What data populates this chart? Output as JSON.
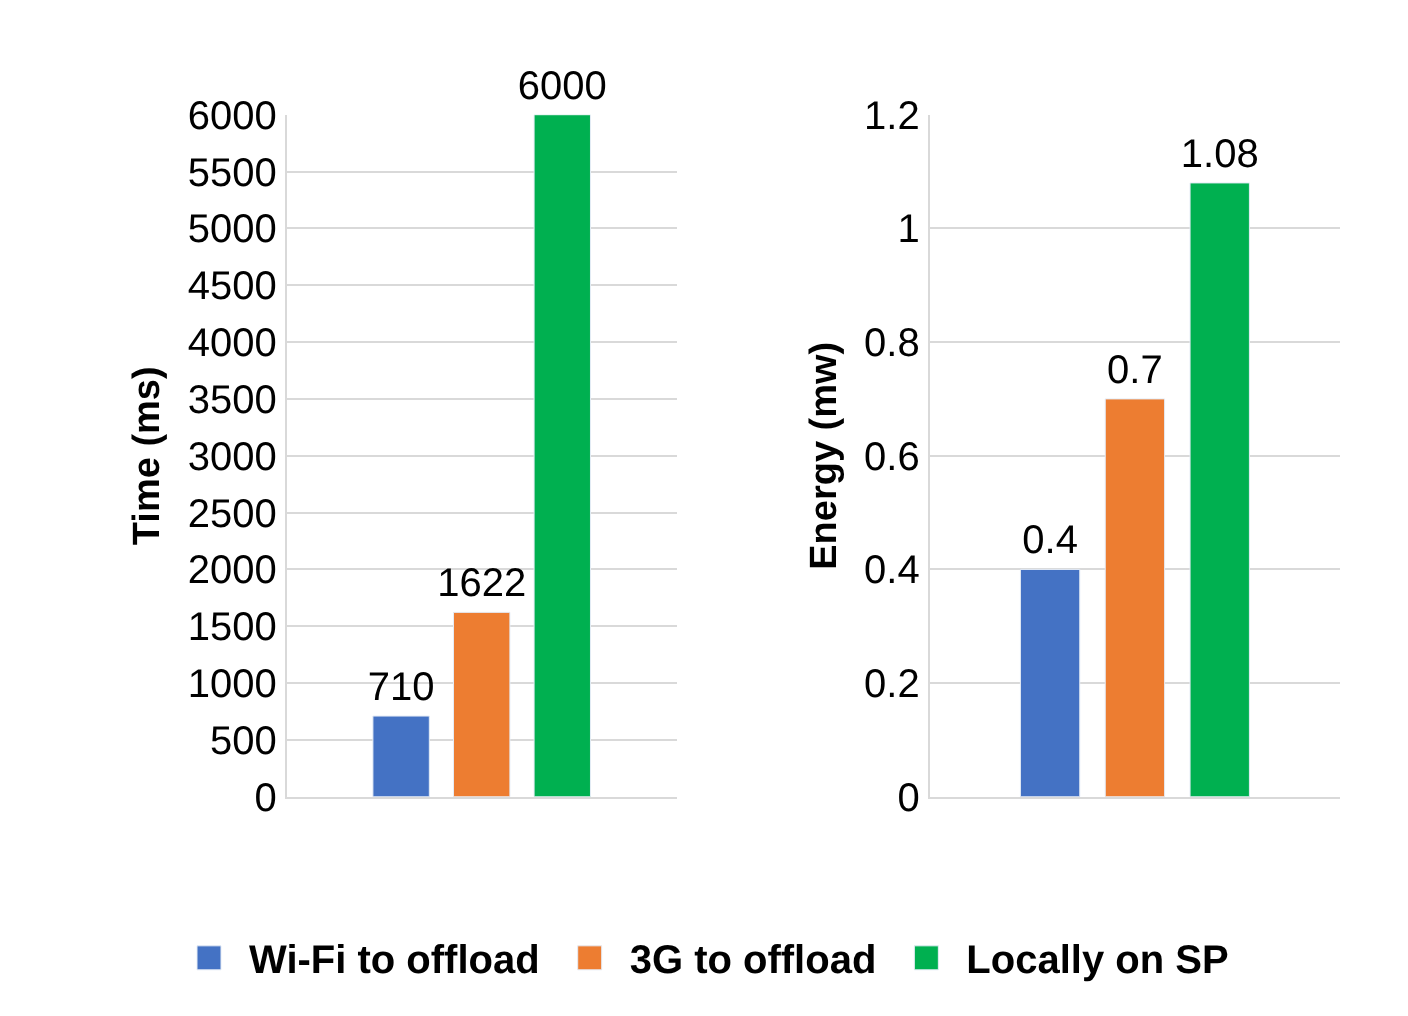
{
  "chart_data": [
    {
      "type": "bar",
      "ylabel": "Time (ms)",
      "categories": [
        null
      ],
      "ylim": [
        0,
        6000
      ],
      "yticks": [
        0,
        500,
        1000,
        1500,
        2000,
        2500,
        3000,
        3500,
        4000,
        4500,
        5000,
        5500,
        6000
      ],
      "grid": "y",
      "legend": "bottom",
      "data_labels": true,
      "tick_labels": "y",
      "series": [
        {
          "name": "Wi-Fi to offload",
          "color": "#4472c4",
          "values": [
            710
          ]
        },
        {
          "name": "3G to offload",
          "color": "#ed7d31",
          "values": [
            1622
          ]
        },
        {
          "name": "Locally on SP",
          "color": "#00b050",
          "values": [
            6000
          ]
        }
      ]
    },
    {
      "type": "bar",
      "ylabel": "Energy (mw)",
      "categories": [
        null
      ],
      "ylim": [
        0,
        1.2
      ],
      "yticks": [
        0,
        0.2,
        0.4,
        0.6,
        0.8,
        1,
        1.2
      ],
      "grid": "y",
      "legend": "bottom",
      "data_labels": true,
      "tick_labels": "y",
      "series": [
        {
          "color": "#4472c4",
          "values": [
            0.4
          ]
        },
        {
          "color": "#ed7d31",
          "values": [
            0.7
          ]
        },
        {
          "color": "#00b050",
          "values": [
            1.08
          ]
        }
      ]
    }
  ]
}
